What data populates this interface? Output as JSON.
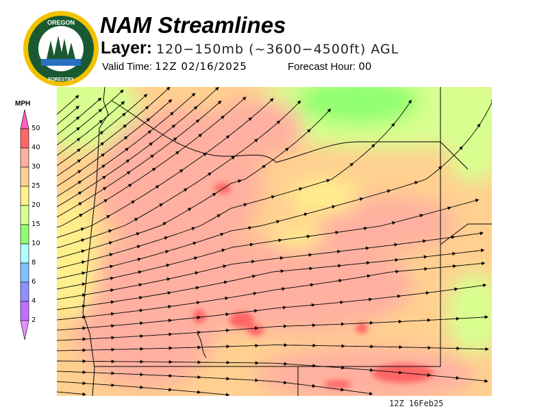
{
  "header": {
    "title": "NAM Streamlines",
    "layer_label": "Layer:",
    "layer_value": "120−150mb (~3600−4500ft) AGL",
    "valid_time_label": "Valid Time:",
    "valid_time_value": "12Z 02/16/2025",
    "forecast_hour_label": "Forecast Hour:",
    "forecast_hour_value": "00"
  },
  "logo": {
    "text_top": "OREGON",
    "text_bottom": "DEPARTMENT OF FORESTRY"
  },
  "legend": {
    "unit": "MPH",
    "ticks": [
      "50",
      "40",
      "30",
      "25",
      "20",
      "15",
      "10",
      "8",
      "6",
      "4",
      "2"
    ],
    "colors": [
      "#ff6666",
      "#ffb0a0",
      "#ffd090",
      "#fff08c",
      "#d8ff90",
      "#90ff70",
      "#b0ffff",
      "#80c0ff",
      "#9090ff",
      "#c070ff"
    ],
    "over_color": "#ff60c0",
    "under_color": "#e890ff"
  },
  "map": {
    "colors": {
      "red": "#ff6666",
      "salmon": "#ffb0a0",
      "orange": "#ffd090",
      "yellow": "#fff08c",
      "lightgreen": "#d8ff90",
      "green": "#90ff70"
    }
  },
  "footer": {
    "timestamp": "12Z 16Feb25"
  }
}
